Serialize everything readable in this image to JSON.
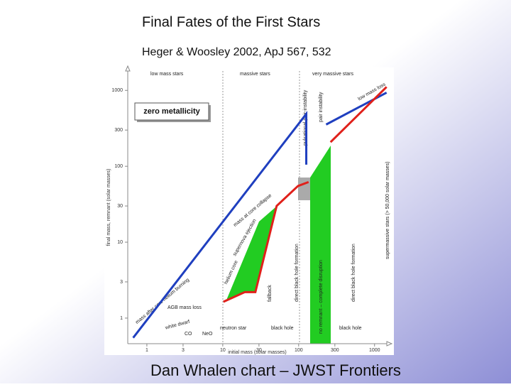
{
  "header": {
    "title": "Final Fates of the First Stars",
    "subtitle": "Heger & Woosley 2002, ApJ 567, 532"
  },
  "chart_data": {
    "type": "line",
    "x_label": "initial mass (solar masses)",
    "y_label": "final mass, remnant (solar masses)",
    "log_x": true,
    "log_y": true,
    "xlim": [
      0.56,
      1450
    ],
    "ylim": [
      0.46,
      1800
    ],
    "xticks": [
      1,
      3,
      10,
      30,
      100,
      300,
      1000
    ],
    "yticks": [
      1,
      3,
      10,
      30,
      100,
      300,
      1000
    ],
    "series": [
      {
        "color": "#1f3fbf",
        "x": [
          0.66,
          126,
          126,
          null,
          230,
          1440
        ],
        "values": [
          0.55,
          490,
          105,
          null,
          355,
          935
        ]
      },
      {
        "color": "#e0201a",
        "x": [
          10.2,
          19.5,
          26.9,
          51.3,
          98,
          135,
          null,
          263,
          1440
        ],
        "values": [
          1.64,
          2.2,
          2.2,
          30,
          55,
          62,
          null,
          208,
          1110
        ]
      }
    ],
    "annotations": [
      "low mass stars",
      "massive stars",
      "very massive stars",
      "zero metallicity",
      "white dwarf",
      "AGB mass loss",
      "CO",
      "NeO",
      "neutron star",
      "black hole",
      "black hole",
      "fallback",
      "direct black hole formation",
      "no remnant – complete disruption",
      "direct black hole formation",
      "supermassive stars (> 50,000 solar masses)",
      "pulsational pair-instability",
      "pair instability",
      "mass after core helium burning",
      "mass at core collapse",
      "supernova ejection",
      "helium core",
      "low mass loss"
    ]
  },
  "footer": "Dan Whalen chart – JWST Frontiers"
}
